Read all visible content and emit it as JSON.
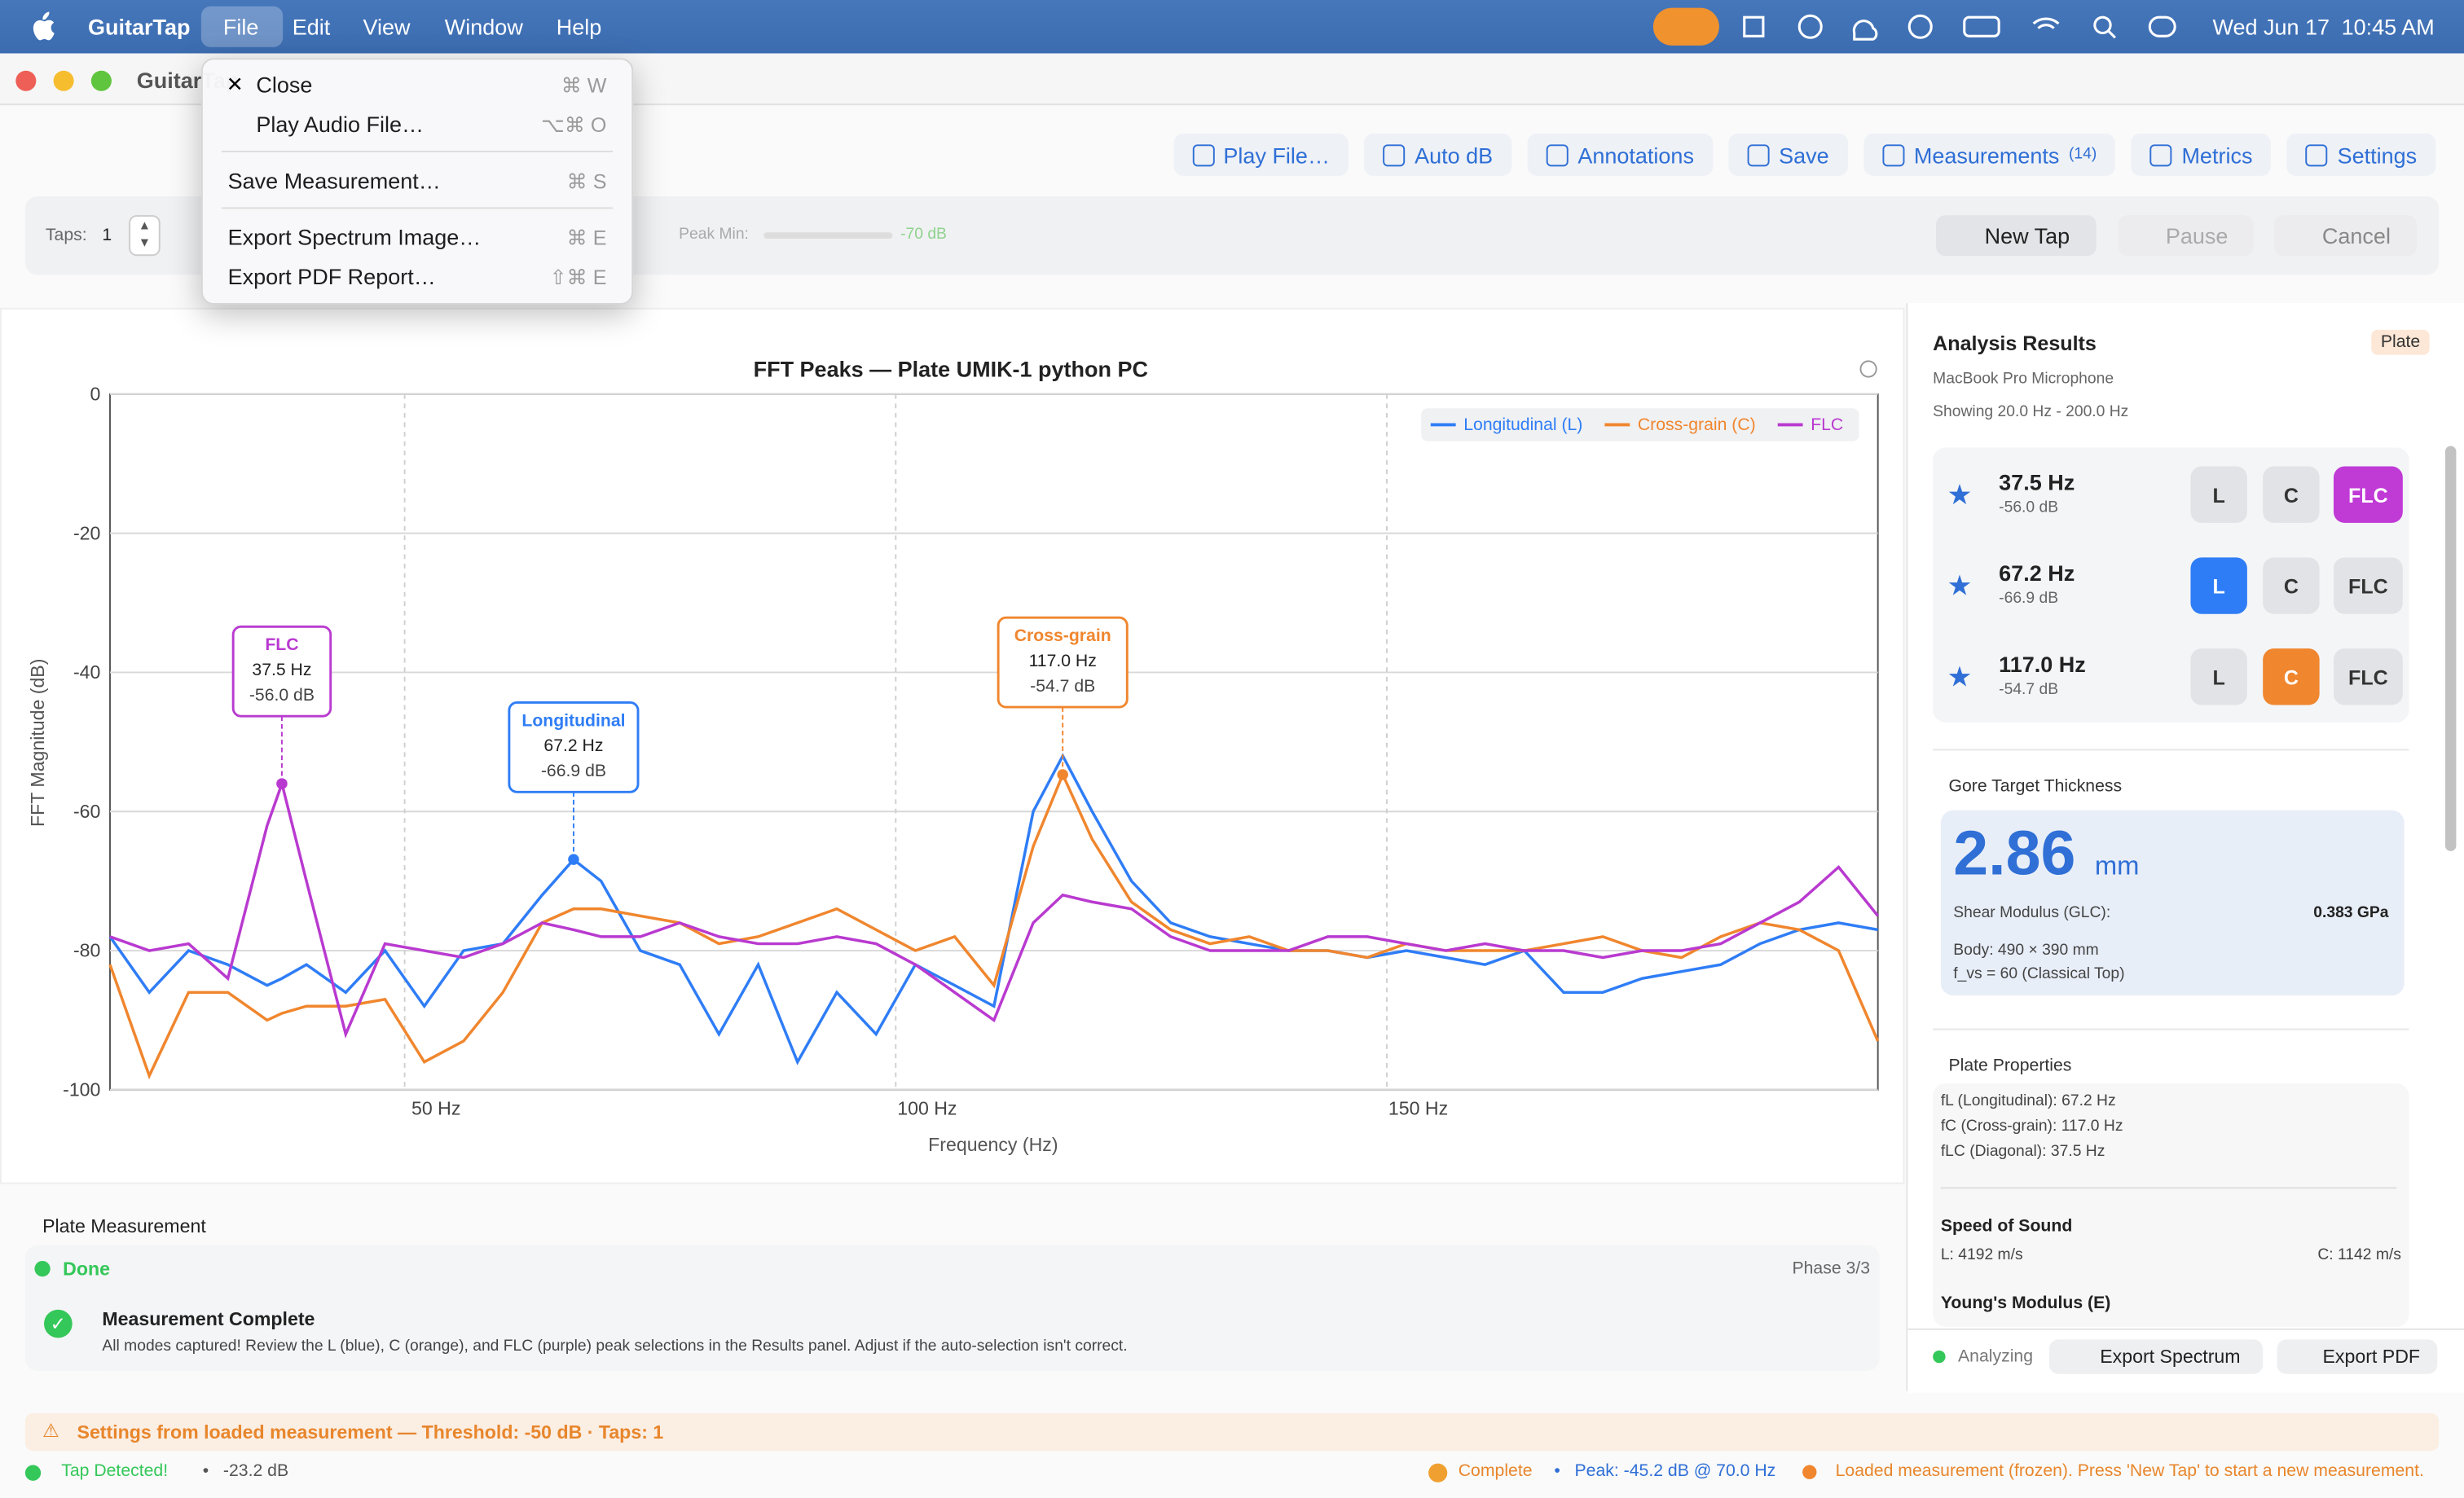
{
  "menubar": {
    "app": "GuitarTap",
    "menus": [
      "File",
      "Edit",
      "View",
      "Window",
      "Help"
    ],
    "date": "Wed Jun 17",
    "time": "10:45 AM"
  },
  "window_title": "GuitarTap",
  "file_menu": {
    "items": [
      {
        "label": "Close",
        "shortcut": "⌘ W"
      },
      {
        "label": "Play Audio File…",
        "shortcut": "⌥⌘ O"
      },
      {
        "label": "Save Measurement…",
        "shortcut": "⌘ S"
      },
      {
        "label": "Export Spectrum Image…",
        "shortcut": "⌘ E"
      },
      {
        "label": "Export PDF Report…",
        "shortcut": "⇧⌘ E"
      }
    ]
  },
  "toolbar": {
    "buttons": [
      "Play File…",
      "Auto dB",
      "Annotations",
      "Save",
      "Measurements",
      "Metrics",
      "Settings"
    ],
    "measurements_count": "(14)"
  },
  "controls": {
    "taps_label": "Taps:",
    "taps_value": 1,
    "peak_min_label": "Peak Min:",
    "peak_min_value": "-70 dB",
    "buttons": [
      "New Tap",
      "Pause",
      "Cancel"
    ]
  },
  "chart": {
    "type": "line",
    "title": "FFT Peaks — Plate UMIK-1 python PC",
    "xlabel": "Frequency (Hz)",
    "ylabel": "FFT Magnitude (dB)",
    "xlim": [
      20,
      200
    ],
    "ylim": [
      -100,
      0
    ],
    "xticks": [
      {
        "value": 50,
        "label": "50 Hz"
      },
      {
        "value": 100,
        "label": "100 Hz"
      },
      {
        "value": 150,
        "label": "150 Hz"
      }
    ],
    "yticks": [
      0,
      -20,
      -40,
      -60,
      -80,
      -100
    ],
    "grid": true,
    "legend": "top-right",
    "x": [
      20,
      24,
      28,
      32,
      36,
      37.5,
      40,
      44,
      48,
      52,
      56,
      60,
      64,
      67.2,
      70,
      74,
      78,
      82,
      86,
      90,
      94,
      98,
      102,
      106,
      110,
      114,
      117,
      120,
      124,
      128,
      132,
      136,
      140,
      144,
      148,
      152,
      156,
      160,
      164,
      168,
      172,
      176,
      180,
      184,
      188,
      192,
      196,
      200
    ],
    "series": [
      {
        "name": "Longitudinal (L)",
        "color": "#2f7df6",
        "values": [
          -78,
          -86,
          -80,
          -82,
          -85,
          -84,
          -82,
          -86,
          -80,
          -88,
          -80,
          -79,
          -72,
          -66.9,
          -70,
          -80,
          -82,
          -92,
          -82,
          -96,
          -86,
          -92,
          -82,
          -85,
          -88,
          -60,
          -52,
          -60,
          -70,
          -76,
          -78,
          -79,
          -80,
          -80,
          -81,
          -80,
          -81,
          -82,
          -80,
          -86,
          -86,
          -84,
          -83,
          -82,
          -79,
          -77,
          -76,
          -77
        ]
      },
      {
        "name": "Cross-grain (C)",
        "color": "#f0862e",
        "values": [
          -82,
          -98,
          -86,
          -86,
          -90,
          -89,
          -88,
          -88,
          -87,
          -96,
          -93,
          -86,
          -76,
          -74,
          -74,
          -75,
          -76,
          -79,
          -78,
          -76,
          -74,
          -77,
          -80,
          -78,
          -85,
          -65,
          -54.7,
          -64,
          -73,
          -77,
          -79,
          -78,
          -80,
          -80,
          -81,
          -79,
          -80,
          -80,
          -80,
          -79,
          -78,
          -80,
          -81,
          -78,
          -76,
          -77,
          -80,
          -93
        ]
      },
      {
        "name": "FLC",
        "color": "#b93ad0",
        "values": [
          -78,
          -80,
          -79,
          -84,
          -62,
          -56,
          -70,
          -92,
          -79,
          -80,
          -81,
          -79,
          -76,
          -77,
          -78,
          -78,
          -76,
          -78,
          -79,
          -79,
          -78,
          -79,
          -82,
          -86,
          -90,
          -76,
          -72,
          -73,
          -74,
          -78,
          -80,
          -80,
          -80,
          -78,
          -78,
          -79,
          -80,
          -79,
          -80,
          -80,
          -81,
          -80,
          -80,
          -79,
          -76,
          -73,
          -68,
          -75
        ]
      }
    ],
    "annotations": [
      {
        "title": "FLC",
        "color": "#b93ad0",
        "x": 37.5,
        "y": -56.0,
        "x_label": "37.5 Hz",
        "y_label": "-56.0 dB"
      },
      {
        "title": "Longitudinal",
        "color": "#2f7df6",
        "x": 67.2,
        "y": -66.9,
        "x_label": "67.2 Hz",
        "y_label": "-66.9 dB"
      },
      {
        "title": "Cross-grain",
        "color": "#f0862e",
        "x": 117.0,
        "y": -54.7,
        "x_label": "117.0 Hz",
        "y_label": "-54.7 dB"
      }
    ]
  },
  "analysis": {
    "title": "Analysis Results",
    "badge": "Plate",
    "device": "MacBook Pro Microphone",
    "range": "Showing 20.0 Hz - 200.0 Hz",
    "modes": [
      "L",
      "C",
      "FLC"
    ],
    "mode_colors": [
      "#2f7df6",
      "#f0862e",
      "#c03ad6"
    ],
    "peaks": [
      {
        "freq": "37.5 Hz",
        "db": "-56.0 dB",
        "selected": "FLC"
      },
      {
        "freq": "67.2 Hz",
        "db": "-66.9 dB",
        "selected": "L"
      },
      {
        "freq": "117.0 Hz",
        "db": "-54.7 dB",
        "selected": "C"
      }
    ]
  },
  "gore": {
    "title": "Gore Target Thickness",
    "value": 2.86,
    "unit": "mm",
    "shear_label": "Shear Modulus (GLC):",
    "shear_value": "0.383 GPa",
    "body": "Body: 490 × 390 mm",
    "fvs": "f_vs = 60 (Classical Top)"
  },
  "plate_properties": {
    "title": "Plate Properties",
    "lines": [
      "fL (Longitudinal): 67.2 Hz",
      "fC (Cross-grain): 117.0 Hz",
      "fLC (Diagonal): 37.5 Hz"
    ],
    "speed_title": "Speed of Sound",
    "speed_l": "L: 4192 m/s",
    "speed_c": "C: 1142 m/s",
    "young_title": "Young's Modulus (E)"
  },
  "panel_footer": {
    "status": "Analyzing",
    "buttons": [
      "Export Spectrum",
      "Export PDF"
    ]
  },
  "plate_measurement": {
    "title": "Plate Measurement",
    "status": "Done",
    "phase": "Phase 3/3",
    "complete_title": "Measurement Complete",
    "complete_text": "All modes captured! Review the L (blue), C (orange), and FLC (purple) peak selections in the Results panel. Adjust if the auto-selection isn't correct."
  },
  "warning": "Settings from loaded measurement — Threshold: -50 dB · Taps: 1",
  "statusbar": {
    "tap": "Tap Detected!",
    "level": "-23.2 dB",
    "complete": "Complete",
    "peak": "Peak: -45.2 dB @ 70.0 Hz",
    "loaded": "Loaded measurement (frozen). Press 'New Tap' to start a new measurement."
  }
}
